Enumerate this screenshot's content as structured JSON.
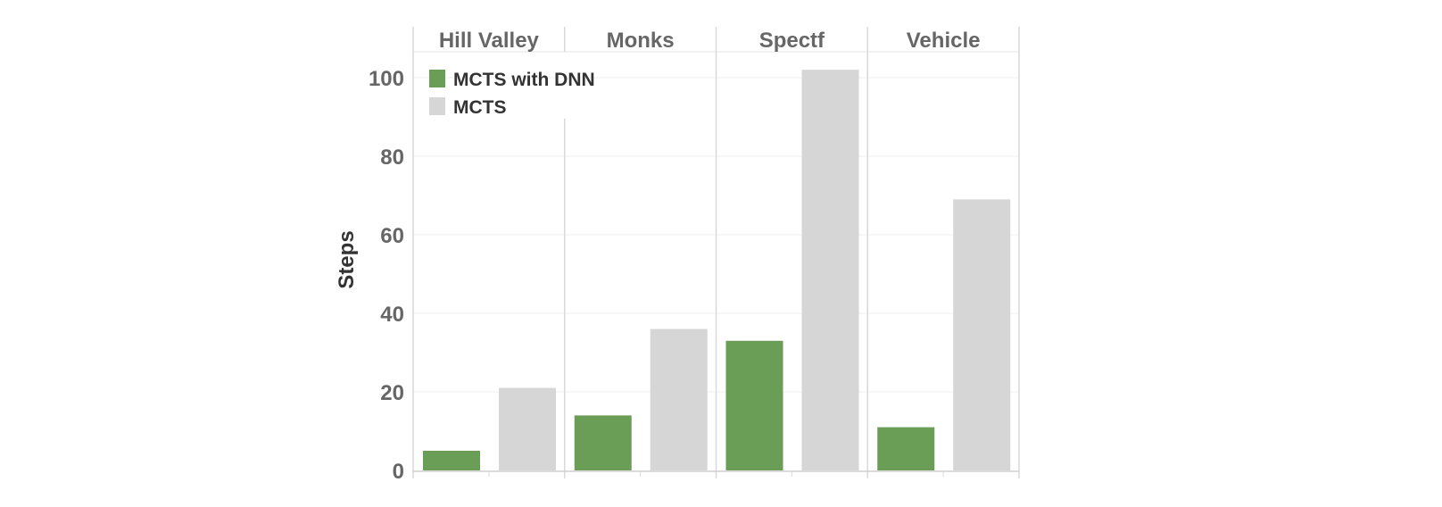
{
  "chart_data": {
    "type": "bar",
    "ylabel": "Steps",
    "ylim": [
      0,
      111
    ],
    "yticks": [
      0,
      20,
      40,
      60,
      80,
      100
    ],
    "grid": true,
    "legend_position": "top-left",
    "categories": [
      "Hill Valley",
      "Monks",
      "Spectf",
      "Vehicle"
    ],
    "series": [
      {
        "name": "MCTS with DNN",
        "color": "#6a9e57",
        "values": [
          5,
          14,
          33,
          11
        ]
      },
      {
        "name": "MCTS",
        "color": "#d6d6d6",
        "values": [
          21,
          36,
          102,
          69
        ]
      }
    ]
  }
}
